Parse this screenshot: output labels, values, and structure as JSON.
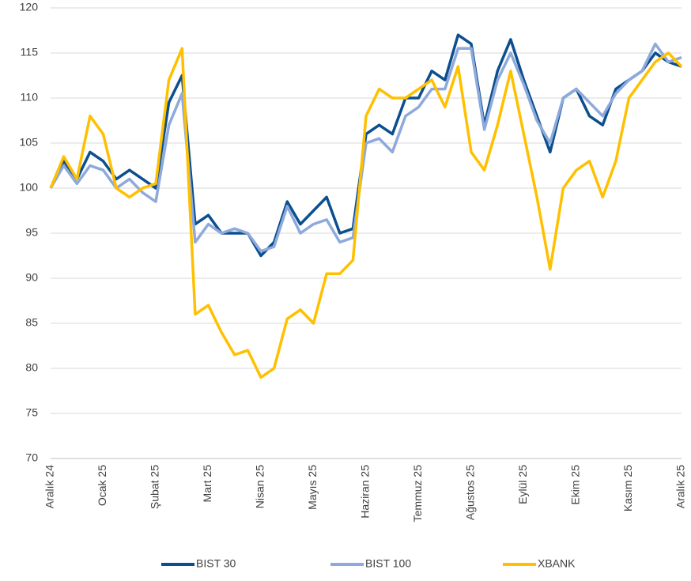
{
  "chart_data": {
    "type": "line",
    "categories": [
      "Aralık 24",
      null,
      null,
      null,
      "Ocak 25",
      null,
      null,
      null,
      "Şubat 25",
      null,
      null,
      null,
      "Mart 25",
      null,
      null,
      null,
      "Nisan 25",
      null,
      null,
      null,
      "Mayıs 25",
      null,
      null,
      null,
      "Haziran 25",
      null,
      null,
      null,
      "Temmuz 25",
      null,
      null,
      null,
      "Ağustos 25",
      null,
      null,
      null,
      "Eylül 25",
      null,
      null,
      null,
      "Ekim 25",
      null,
      null,
      null,
      "Kasım 25",
      null,
      null,
      null,
      "Aralık 25"
    ],
    "series": [
      {
        "name": "BIST 30",
        "color": "#0b4f8f",
        "values": [
          100,
          103,
          101,
          104,
          103,
          101,
          102,
          101,
          100,
          109.5,
          112.5,
          96,
          97,
          95,
          95,
          95,
          92.5,
          94,
          98.5,
          96,
          97.5,
          99,
          95,
          95.5,
          106,
          107,
          106,
          110,
          110,
          113,
          112,
          117,
          116,
          107,
          113,
          116.5,
          112,
          108,
          104,
          110,
          111,
          108,
          107,
          111,
          112,
          113,
          115,
          114,
          113.5
        ]
      },
      {
        "name": "BIST 100",
        "color": "#8ea9db",
        "values": [
          100,
          102.5,
          100.5,
          102.5,
          102,
          100,
          101,
          99.5,
          98.5,
          107,
          110.5,
          94,
          96,
          95,
          95.5,
          95,
          93,
          93.5,
          98,
          95,
          96,
          96.5,
          94,
          94.5,
          105,
          105.5,
          104,
          108,
          109,
          111,
          111,
          115.5,
          115.5,
          106.5,
          112,
          115,
          111.5,
          107.5,
          105,
          110,
          111,
          109.5,
          108,
          110.5,
          112,
          113,
          116,
          114,
          114.5
        ]
      },
      {
        "name": "XBANK",
        "color": "#ffc000",
        "values": [
          100,
          103.5,
          101,
          108,
          106,
          100,
          99,
          100,
          100.5,
          112,
          115.5,
          86,
          87,
          84,
          81.5,
          82,
          79,
          80,
          85.5,
          86.5,
          85,
          90.5,
          90.5,
          92,
          108,
          111,
          110,
          110,
          111,
          112,
          109,
          113.5,
          104,
          102,
          107,
          113,
          106,
          99,
          91,
          100,
          102,
          103,
          99,
          103,
          110,
          112,
          114,
          115,
          113.5
        ]
      }
    ],
    "ylim": [
      70,
      120
    ],
    "yticks": [
      70,
      75,
      80,
      85,
      90,
      95,
      100,
      105,
      110,
      115,
      120
    ],
    "grid": true,
    "legend": "bottom"
  }
}
